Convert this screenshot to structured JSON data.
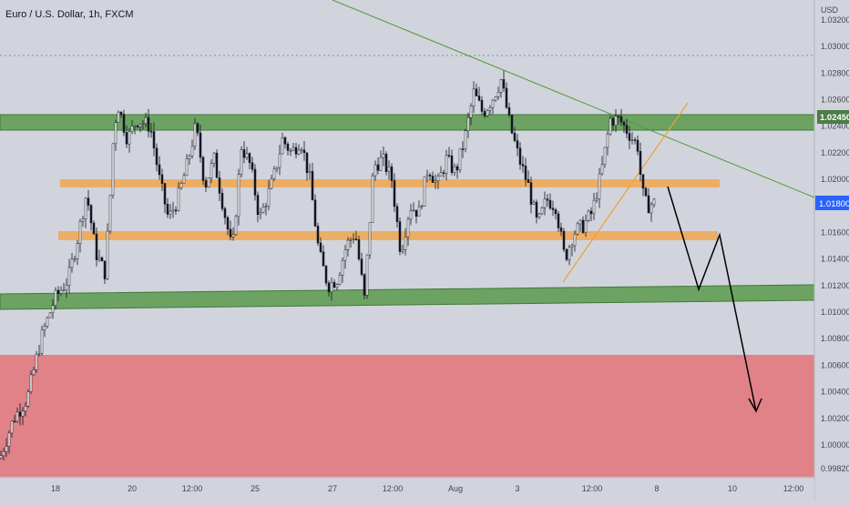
{
  "header": {
    "symbol_title": "Euro / U.S. Dollar, 1h, FXCM"
  },
  "price_axis": {
    "currency": "USD",
    "ticks": [
      "1.03200",
      "1.03000",
      "1.02800",
      "1.02600",
      "1.02400",
      "1.02200",
      "1.02000",
      "1.01800",
      "1.01600",
      "1.01400",
      "1.01200",
      "1.01000",
      "1.00800",
      "1.00600",
      "1.00400",
      "1.00200",
      "1.00000",
      "0.99820"
    ],
    "tick_values": [
      1.032,
      1.03,
      1.028,
      1.026,
      1.024,
      1.022,
      1.02,
      1.018,
      1.016,
      1.014,
      1.012,
      1.01,
      1.008,
      1.006,
      1.004,
      1.002,
      1.0,
      0.9982
    ],
    "marker_level": {
      "label": "1.02450",
      "value": 1.0245
    },
    "marker_price": {
      "label": "1.01800",
      "value": 1.018
    }
  },
  "time_axis": {
    "labels": [
      "18",
      "20",
      "12:00",
      "25",
      "27",
      "12:00",
      "Aug",
      "3",
      "12:00",
      "8",
      "10",
      "12:00"
    ]
  },
  "chart_data": {
    "type": "candlestick",
    "symbol": "EURUSD",
    "interval": "1h",
    "y_range": [
      0.9976,
      1.0335
    ],
    "current_price": 1.018,
    "resistance_zone_label": 1.0245,
    "price_path": [
      [
        0,
        0.999
      ],
      [
        15,
        1.002
      ],
      [
        30,
        1.0035
      ],
      [
        45,
        1.008
      ],
      [
        60,
        1.011
      ],
      [
        75,
        1.0125
      ],
      [
        85,
        1.0155
      ],
      [
        95,
        1.019
      ],
      [
        105,
        1.0145
      ],
      [
        115,
        1.013
      ],
      [
        120,
        1.0175
      ],
      [
        125,
        1.024
      ],
      [
        130,
        1.0255
      ],
      [
        140,
        1.023
      ],
      [
        150,
        1.0245
      ],
      [
        165,
        1.024
      ],
      [
        175,
        1.02
      ],
      [
        185,
        1.017
      ],
      [
        195,
        1.0185
      ],
      [
        205,
        1.021
      ],
      [
        215,
        1.024
      ],
      [
        225,
        1.0195
      ],
      [
        235,
        1.0215
      ],
      [
        245,
        1.018
      ],
      [
        255,
        1.0145
      ],
      [
        265,
        1.0225
      ],
      [
        275,
        1.021
      ],
      [
        285,
        1.017
      ],
      [
        300,
        1.02
      ],
      [
        310,
        1.023
      ],
      [
        320,
        1.022
      ],
      [
        330,
        1.023
      ],
      [
        340,
        1.02
      ],
      [
        350,
        1.0145
      ],
      [
        360,
        1.012
      ],
      [
        370,
        1.0125
      ],
      [
        380,
        1.015
      ],
      [
        390,
        1.016
      ],
      [
        400,
        1.011
      ],
      [
        410,
        1.021
      ],
      [
        420,
        1.0215
      ],
      [
        430,
        1.02
      ],
      [
        440,
        1.0145
      ],
      [
        450,
        1.018
      ],
      [
        460,
        1.0175
      ],
      [
        470,
        1.021
      ],
      [
        480,
        1.0195
      ],
      [
        490,
        1.0215
      ],
      [
        500,
        1.0205
      ],
      [
        510,
        1.023
      ],
      [
        520,
        1.0265
      ],
      [
        530,
        1.025
      ],
      [
        540,
        1.026
      ],
      [
        550,
        1.0275
      ],
      [
        560,
        1.024
      ],
      [
        570,
        1.0215
      ],
      [
        580,
        1.0195
      ],
      [
        590,
        1.0165
      ],
      [
        600,
        1.0185
      ],
      [
        610,
        1.018
      ],
      [
        620,
        1.014
      ],
      [
        630,
        1.016
      ],
      [
        640,
        1.0165
      ],
      [
        650,
        1.0175
      ],
      [
        660,
        1.0205
      ],
      [
        670,
        1.0245
      ],
      [
        680,
        1.0245
      ],
      [
        690,
        1.0235
      ],
      [
        700,
        1.0225
      ],
      [
        705,
        1.019
      ],
      [
        710,
        1.018
      ],
      [
        718,
        1.0182
      ]
    ],
    "zones": [
      {
        "name": "upper-green-zone",
        "color": "#5a9a4e",
        "from": 1.0238,
        "to": 1.0251
      },
      {
        "name": "upper-orange-zone",
        "color": "#f0a856",
        "from": 1.0193,
        "to": 1.0199
      },
      {
        "name": "lower-orange-zone",
        "color": "#f0a856",
        "from": 1.0152,
        "to": 1.0158
      },
      {
        "name": "lower-green-zone",
        "color": "#5a9a4e",
        "from": 1.0102,
        "to": 1.0116
      },
      {
        "name": "red-zone",
        "color": "#e08288",
        "from": 0.9976,
        "to": 1.0062
      }
    ]
  },
  "colors": {
    "background": "#d1d4dc",
    "candle": "#131722",
    "green_zone": "#5a9a4e",
    "orange_zone": "#f0a856",
    "red_zone": "#e08288",
    "trendline": "#4f9a3c",
    "marker_green": "#4b7d45",
    "marker_blue": "#2962ff"
  }
}
